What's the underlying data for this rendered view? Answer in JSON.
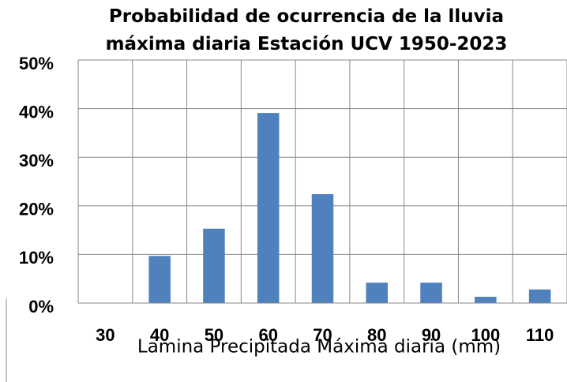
{
  "chart_data": {
    "type": "bar",
    "title": "Probabilidad de ocurrencia de la lluvia máxima diaria Estación UCV 1950-2023",
    "x_label": "Lamina Precipitada Máxima diaria (mm)",
    "categories": [
      "30",
      "40",
      "50",
      "60",
      "70",
      "80",
      "90",
      "100",
      "110"
    ],
    "values": [
      0,
      9.7,
      15.3,
      39.1,
      22.4,
      4.2,
      4.2,
      1.3,
      2.8
    ],
    "color": "#4f81bd",
    "ylim": [
      0,
      50
    ],
    "yticks": [
      {
        "value": 0,
        "label": "0%"
      },
      {
        "value": 10,
        "label": "10%"
      },
      {
        "value": 20,
        "label": "20%"
      },
      {
        "value": 30,
        "label": "30%"
      },
      {
        "value": 40,
        "label": "40%"
      },
      {
        "value": 50,
        "label": "50%"
      }
    ],
    "grid": true
  }
}
